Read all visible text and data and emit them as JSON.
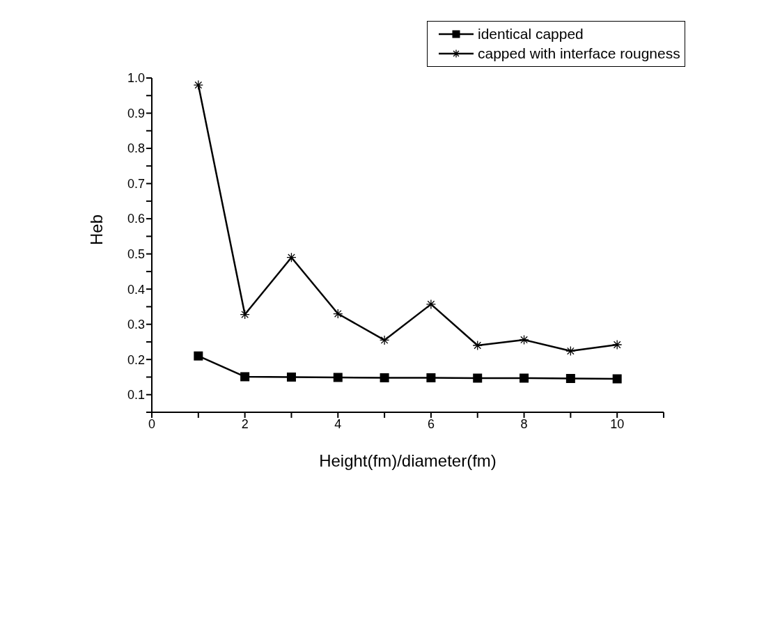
{
  "chart_data": {
    "type": "line",
    "xlabel": "Height(fm)/diameter(fm)",
    "ylabel": "Heb",
    "x": [
      1,
      2,
      3,
      4,
      5,
      6,
      7,
      8,
      9,
      10
    ],
    "series": [
      {
        "name": "identical capped",
        "color": "#000000",
        "marker": "square",
        "values": [
          0.21,
          0.151,
          0.15,
          0.149,
          0.148,
          0.148,
          0.147,
          0.147,
          0.146,
          0.145
        ]
      },
      {
        "name": "capped with interface rougness",
        "color": "#000000",
        "marker": "cross",
        "values": [
          0.98,
          0.328,
          0.49,
          0.33,
          0.255,
          0.357,
          0.24,
          0.256,
          0.224,
          0.242
        ]
      }
    ],
    "xlim": [
      0,
      11
    ],
    "xticks": [
      0,
      {
        "value": 1,
        "label": null
      },
      2,
      {
        "value": 3,
        "label": null
      },
      4,
      {
        "value": 5,
        "label": null
      },
      6,
      {
        "value": 7,
        "label": null
      },
      8,
      {
        "value": 9,
        "label": null
      },
      10,
      {
        "value": 11,
        "label": null
      }
    ],
    "ylim": [
      0.05,
      1.0
    ],
    "yticks": [
      {
        "value": 0.05,
        "label": null
      },
      0.1,
      {
        "value": 0.15,
        "label": null
      },
      0.2,
      {
        "value": 0.25,
        "label": null
      },
      0.3,
      {
        "value": 0.35,
        "label": null
      },
      0.4,
      {
        "value": 0.45,
        "label": null
      },
      0.5,
      {
        "value": 0.55,
        "label": null
      },
      0.6,
      {
        "value": 0.65,
        "label": null
      },
      0.7,
      {
        "value": 0.75,
        "label": null
      },
      0.8,
      {
        "value": 0.85,
        "label": null
      },
      0.9,
      {
        "value": 0.95,
        "label": null
      },
      {
        "value": 1.0,
        "label": "1.0"
      }
    ],
    "grid": false,
    "legend": "top right",
    "line_style": "solid"
  }
}
